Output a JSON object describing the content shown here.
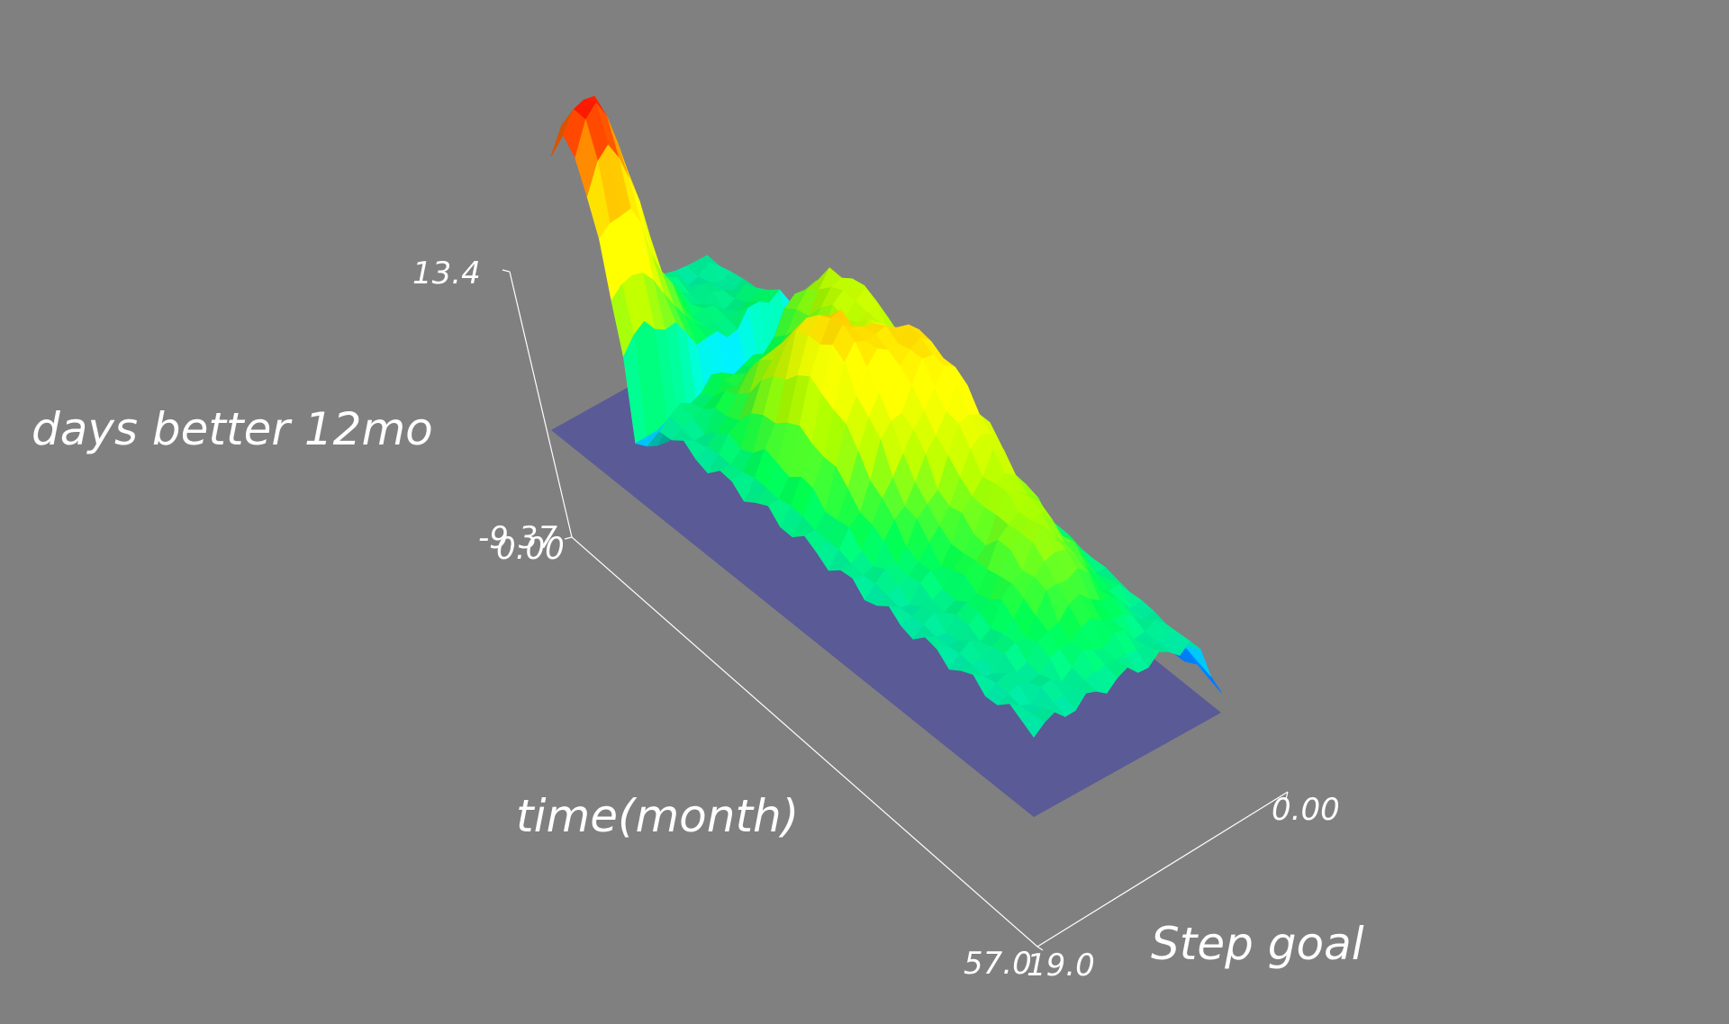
{
  "chart_data": {
    "type": "surface3d",
    "axes": {
      "x": {
        "label": "time(month)",
        "range": [
          0,
          57.0
        ],
        "tick_labels": [
          "0.00",
          "57.0"
        ]
      },
      "y": {
        "label": "Step goal",
        "range": [
          0,
          19.0
        ],
        "tick_labels": [
          "0.00",
          "19.0"
        ]
      },
      "z": {
        "label": "days better 12mo",
        "range": [
          -9.37,
          13.4
        ],
        "tick_labels": [
          "-9.37",
          "13.4"
        ]
      }
    },
    "grid": false,
    "legend": "none",
    "colormap": [
      "#0000ff",
      "#00c8ff",
      "#00ff50",
      "#a8ff00",
      "#ffff00",
      "#ff9600",
      "#ff0000"
    ],
    "base_plane_color": "#5a5a96",
    "background": "#808080",
    "surface_summary": {
      "peak_value": 13.4,
      "peak_at": {
        "time": 2,
        "step_goal": 2
      },
      "secondary_ridges": [
        {
          "time": 26,
          "step_goal": 6,
          "value": 8.0
        },
        {
          "time": 32,
          "step_goal": 11,
          "value": 7.8
        }
      ]
    }
  }
}
